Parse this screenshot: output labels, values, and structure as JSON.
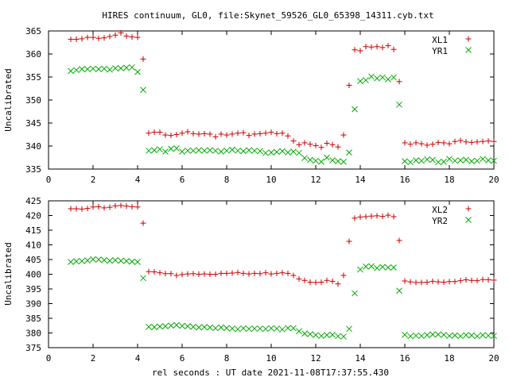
{
  "page": {
    "title": "HIRES continuum, GL0, file:Skynet_59526_GL0_65398_14311.cyb.txt"
  },
  "colors": {
    "series1": "#cc0000",
    "series2": "#00aa00",
    "axis": "#000000"
  },
  "chart_data": [
    {
      "type": "scatter",
      "ylabel": "Uncalibrated",
      "xlim": [
        0,
        20
      ],
      "ylim": [
        335,
        365
      ],
      "xticks": [
        "0",
        "2",
        "4",
        "6",
        "8",
        "10",
        "12",
        "14",
        "16",
        "18",
        "20"
      ],
      "yticks": [
        "335",
        "340",
        "345",
        "350",
        "355",
        "360",
        "365"
      ],
      "grid": false,
      "legend_position": "top-right",
      "series": [
        {
          "name": "XL1",
          "marker": "plus",
          "x": [
            1.0,
            1.25,
            1.5,
            1.75,
            2.0,
            2.25,
            2.5,
            2.75,
            3.0,
            3.25,
            3.5,
            3.75,
            4.0,
            4.25,
            4.5,
            4.75,
            5.0,
            5.25,
            5.5,
            5.75,
            6.0,
            6.25,
            6.5,
            6.75,
            7.0,
            7.25,
            7.5,
            7.75,
            8.0,
            8.25,
            8.5,
            8.75,
            9.0,
            9.25,
            9.5,
            9.75,
            10.0,
            10.25,
            10.5,
            10.75,
            11.0,
            11.25,
            11.5,
            11.75,
            12.0,
            12.25,
            12.5,
            12.75,
            13.0,
            13.25,
            13.5,
            13.75,
            14.0,
            14.25,
            14.5,
            14.75,
            15.0,
            15.25,
            15.5,
            15.75,
            16.0,
            16.25,
            16.5,
            16.75,
            17.0,
            17.25,
            17.5,
            17.75,
            18.0,
            18.25,
            18.5,
            18.75,
            19.0,
            19.25,
            19.5,
            19.75,
            20.0
          ],
          "y": [
            363.2,
            363.2,
            363.3,
            363.6,
            363.6,
            363.4,
            363.5,
            363.8,
            364.1,
            364.6,
            363.9,
            363.7,
            363.6,
            358.9,
            342.8,
            343.0,
            343.0,
            342.4,
            342.3,
            342.5,
            342.8,
            343.1,
            342.7,
            342.6,
            342.7,
            342.6,
            342.0,
            342.6,
            342.4,
            342.6,
            342.8,
            342.9,
            342.3,
            342.6,
            342.7,
            342.8,
            343.0,
            342.7,
            342.8,
            342.2,
            341.1,
            340.3,
            340.7,
            340.4,
            340.1,
            339.7,
            340.6,
            340.3,
            339.8,
            342.4,
            353.2,
            360.9,
            360.7,
            361.6,
            361.5,
            361.6,
            361.4,
            361.8,
            361.0,
            354.0,
            340.7,
            340.4,
            340.7,
            340.5,
            340.2,
            340.4,
            340.8,
            340.7,
            340.5,
            341.0,
            341.2,
            340.9,
            340.8,
            340.9,
            341.0,
            341.1,
            341.0
          ]
        },
        {
          "name": "YR1",
          "marker": "cross",
          "x": [
            1.0,
            1.25,
            1.5,
            1.75,
            2.0,
            2.25,
            2.5,
            2.75,
            3.0,
            3.25,
            3.5,
            3.75,
            4.0,
            4.25,
            4.5,
            4.75,
            5.0,
            5.25,
            5.5,
            5.75,
            6.0,
            6.25,
            6.5,
            6.75,
            7.0,
            7.25,
            7.5,
            7.75,
            8.0,
            8.25,
            8.5,
            8.75,
            9.0,
            9.25,
            9.5,
            9.75,
            10.0,
            10.25,
            10.5,
            10.75,
            11.0,
            11.25,
            11.5,
            11.75,
            12.0,
            12.25,
            12.5,
            12.75,
            13.0,
            13.25,
            13.5,
            13.75,
            14.0,
            14.25,
            14.5,
            14.75,
            15.0,
            15.25,
            15.5,
            15.75,
            16.0,
            16.25,
            16.5,
            16.75,
            17.0,
            17.25,
            17.5,
            17.75,
            18.0,
            18.25,
            18.5,
            18.75,
            19.0,
            19.25,
            19.5,
            19.75,
            20.0
          ],
          "y": [
            356.3,
            356.5,
            356.7,
            356.7,
            356.8,
            356.7,
            356.8,
            356.6,
            356.9,
            356.9,
            357.0,
            357.1,
            356.1,
            352.2,
            339.0,
            339.1,
            339.3,
            338.8,
            339.4,
            339.5,
            338.8,
            339.0,
            339.0,
            339.1,
            339.0,
            339.1,
            339.0,
            338.8,
            339.0,
            339.2,
            339.0,
            338.9,
            339.1,
            339.0,
            338.9,
            338.5,
            338.6,
            338.7,
            338.9,
            338.6,
            338.8,
            338.5,
            337.4,
            337.0,
            336.8,
            336.6,
            337.5,
            336.9,
            336.7,
            336.6,
            338.6,
            348.0,
            354.1,
            354.3,
            355.1,
            354.7,
            354.9,
            354.5,
            354.9,
            349.0,
            336.7,
            336.5,
            336.9,
            336.8,
            337.1,
            337.0,
            336.5,
            336.6,
            337.2,
            336.8,
            336.9,
            337.0,
            336.7,
            336.8,
            337.2,
            336.9,
            336.8
          ]
        }
      ]
    },
    {
      "type": "scatter",
      "ylabel": "Uncalibrated",
      "xlabel": "rel seconds : UT date 2021-11-08T17:37:55.430",
      "xlim": [
        0,
        20
      ],
      "ylim": [
        375,
        425
      ],
      "xticks": [
        "0",
        "2",
        "4",
        "6",
        "8",
        "10",
        "12",
        "14",
        "16",
        "18",
        "20"
      ],
      "yticks": [
        "375",
        "380",
        "385",
        "390",
        "395",
        "400",
        "405",
        "410",
        "415",
        "420",
        "425"
      ],
      "grid": false,
      "legend_position": "top-right",
      "series": [
        {
          "name": "XL2",
          "marker": "plus",
          "x": [
            1.0,
            1.25,
            1.5,
            1.75,
            2.0,
            2.25,
            2.5,
            2.75,
            3.0,
            3.25,
            3.5,
            3.75,
            4.0,
            4.25,
            4.5,
            4.75,
            5.0,
            5.25,
            5.5,
            5.75,
            6.0,
            6.25,
            6.5,
            6.75,
            7.0,
            7.25,
            7.5,
            7.75,
            8.0,
            8.25,
            8.5,
            8.75,
            9.0,
            9.25,
            9.5,
            9.75,
            10.0,
            10.25,
            10.5,
            10.75,
            11.0,
            11.25,
            11.5,
            11.75,
            12.0,
            12.25,
            12.5,
            12.75,
            13.0,
            13.25,
            13.5,
            13.75,
            14.0,
            14.25,
            14.5,
            14.75,
            15.0,
            15.25,
            15.5,
            15.75,
            16.0,
            16.25,
            16.5,
            16.75,
            17.0,
            17.25,
            17.5,
            17.75,
            18.0,
            18.25,
            18.5,
            18.75,
            19.0,
            19.25,
            19.5,
            19.75,
            20.0
          ],
          "y": [
            422.3,
            422.3,
            422.2,
            422.4,
            422.9,
            423.0,
            422.6,
            422.8,
            423.3,
            423.4,
            423.2,
            423.0,
            422.9,
            417.4,
            400.9,
            400.8,
            400.5,
            400.2,
            400.2,
            399.6,
            399.9,
            400.1,
            400.2,
            400.0,
            400.1,
            400.0,
            400.0,
            400.3,
            400.3,
            400.4,
            400.6,
            400.3,
            400.1,
            400.3,
            400.2,
            400.5,
            400.1,
            400.3,
            400.5,
            400.3,
            399.6,
            398.4,
            397.9,
            397.3,
            397.2,
            397.3,
            397.9,
            397.6,
            396.7,
            399.6,
            411.2,
            419.1,
            419.5,
            419.6,
            419.8,
            419.9,
            419.7,
            420.1,
            419.6,
            411.5,
            397.7,
            397.4,
            397.2,
            397.2,
            397.3,
            397.6,
            397.4,
            397.3,
            397.5,
            397.5,
            397.8,
            398.1,
            397.9,
            397.8,
            398.2,
            398.1,
            398.0
          ]
        },
        {
          "name": "YR2",
          "marker": "cross",
          "x": [
            1.0,
            1.25,
            1.5,
            1.75,
            2.0,
            2.25,
            2.5,
            2.75,
            3.0,
            3.25,
            3.5,
            3.75,
            4.0,
            4.25,
            4.5,
            4.75,
            5.0,
            5.25,
            5.5,
            5.75,
            6.0,
            6.25,
            6.5,
            6.75,
            7.0,
            7.25,
            7.5,
            7.75,
            8.0,
            8.25,
            8.5,
            8.75,
            9.0,
            9.25,
            9.5,
            9.75,
            10.0,
            10.25,
            10.5,
            10.75,
            11.0,
            11.25,
            11.5,
            11.75,
            12.0,
            12.25,
            12.5,
            12.75,
            13.0,
            13.25,
            13.5,
            13.75,
            14.0,
            14.25,
            14.5,
            14.75,
            15.0,
            15.25,
            15.5,
            15.75,
            16.0,
            16.25,
            16.5,
            16.75,
            17.0,
            17.25,
            17.5,
            17.75,
            18.0,
            18.25,
            18.5,
            18.75,
            19.0,
            19.25,
            19.5,
            19.75,
            20.0
          ],
          "y": [
            404.2,
            404.4,
            404.5,
            404.7,
            405.1,
            405.0,
            404.8,
            404.6,
            404.8,
            404.6,
            404.5,
            404.3,
            404.2,
            398.7,
            382.1,
            382.0,
            382.2,
            382.3,
            382.5,
            382.7,
            382.4,
            382.3,
            382.1,
            381.9,
            382.0,
            381.9,
            381.6,
            381.9,
            381.7,
            381.5,
            381.3,
            381.6,
            381.4,
            381.5,
            381.5,
            381.4,
            381.6,
            381.5,
            381.2,
            381.7,
            381.6,
            380.6,
            379.8,
            379.6,
            379.3,
            379.0,
            379.3,
            379.4,
            378.9,
            378.8,
            381.4,
            393.5,
            401.6,
            402.6,
            402.7,
            402.1,
            402.5,
            402.3,
            402.3,
            394.4,
            379.4,
            378.9,
            379.1,
            379.0,
            379.3,
            379.5,
            379.5,
            379.4,
            379.0,
            379.2,
            378.9,
            379.3,
            379.2,
            378.9,
            379.3,
            379.1,
            379.0
          ]
        }
      ]
    }
  ]
}
